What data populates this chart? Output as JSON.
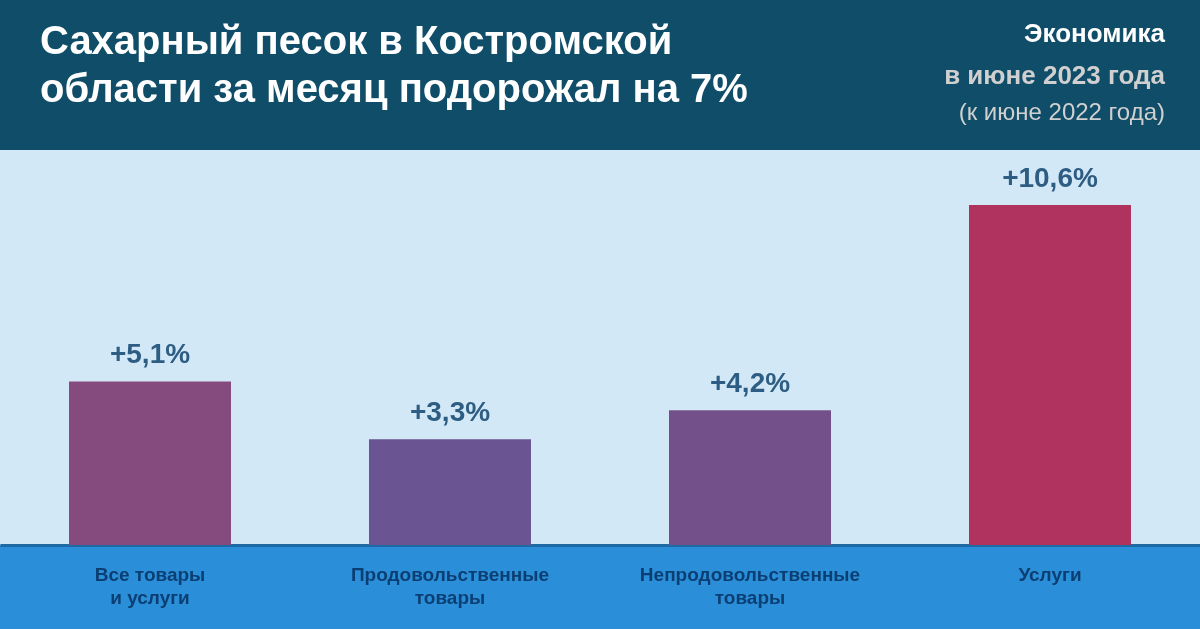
{
  "chart_data": {
    "type": "bar",
    "title": "Сахарный песок в Костромской области за месяц подорожал на 7%",
    "subtitle": "в июне 2023 года",
    "annotations": [
      "(к июне 2022 года)",
      "Экономика"
    ],
    "categories": [
      "Все товары и услуги",
      "Продовольственные товары",
      "Непродовольственные товары",
      "Услуги"
    ],
    "values": [
      5.1,
      3.3,
      4.2,
      10.6
    ],
    "colors": [
      "#854a7e",
      "#6a5592",
      "#735089",
      "#b0325f"
    ],
    "value_labels": [
      "+5,1%",
      "+3,3%",
      "+4,2%",
      "+10,6%"
    ]
  }
}
